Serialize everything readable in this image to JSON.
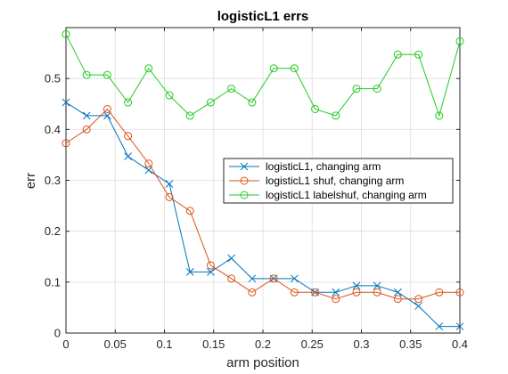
{
  "chart_data": {
    "type": "line",
    "title": "logisticL1 errs",
    "xlabel": "arm position",
    "ylabel": "err",
    "xlim": [
      0,
      0.4
    ],
    "ylim": [
      0,
      0.6
    ],
    "grid": true,
    "legend_position": "center-right",
    "x_ticks": [
      {
        "value": 0,
        "label": "0"
      },
      {
        "value": 0.05,
        "label": "0.05"
      },
      {
        "value": 0.1,
        "label": "0.1"
      },
      {
        "value": 0.15,
        "label": "0.15"
      },
      {
        "value": 0.2,
        "label": "0.2"
      },
      {
        "value": 0.25,
        "label": "0.25"
      },
      {
        "value": 0.3,
        "label": "0.3"
      },
      {
        "value": 0.35,
        "label": "0.35"
      },
      {
        "value": 0.4,
        "label": "0.4"
      }
    ],
    "y_ticks": [
      {
        "value": 0,
        "label": "0"
      },
      {
        "value": 0.1,
        "label": "0.1"
      },
      {
        "value": 0.2,
        "label": "0.2"
      },
      {
        "value": 0.3,
        "label": "0.3"
      },
      {
        "value": 0.4,
        "label": "0.4"
      },
      {
        "value": 0.5,
        "label": "0.5"
      }
    ],
    "x": [
      0,
      0.021,
      0.042,
      0.063,
      0.084,
      0.105,
      0.126,
      0.147,
      0.168,
      0.189,
      0.211,
      0.232,
      0.253,
      0.274,
      0.295,
      0.316,
      0.337,
      0.358,
      0.379,
      0.4
    ],
    "series": [
      {
        "name": "logisticL1, changing arm",
        "color": "#0072bd",
        "marker": "x",
        "values": [
          0.453,
          0.427,
          0.427,
          0.347,
          0.32,
          0.293,
          0.12,
          0.12,
          0.147,
          0.107,
          0.107,
          0.107,
          0.08,
          0.08,
          0.093,
          0.093,
          0.08,
          0.053,
          0.013,
          0.013
        ]
      },
      {
        "name": "logisticL1 shuf, changing arm",
        "color": "#d95319",
        "marker": "circle",
        "values": [
          0.373,
          0.4,
          0.44,
          0.387,
          0.333,
          0.267,
          0.24,
          0.133,
          0.107,
          0.08,
          0.107,
          0.08,
          0.08,
          0.067,
          0.08,
          0.08,
          0.067,
          0.067,
          0.08,
          0.08
        ]
      },
      {
        "name": "logisticL1 labelshuf, changing arm",
        "color": "#22cc22",
        "marker": "circle",
        "values": [
          0.587,
          0.507,
          0.507,
          0.453,
          0.52,
          0.467,
          0.427,
          0.453,
          0.48,
          0.453,
          0.52,
          0.52,
          0.44,
          0.427,
          0.48,
          0.48,
          0.547,
          0.547,
          0.427,
          0.573
        ]
      }
    ]
  }
}
